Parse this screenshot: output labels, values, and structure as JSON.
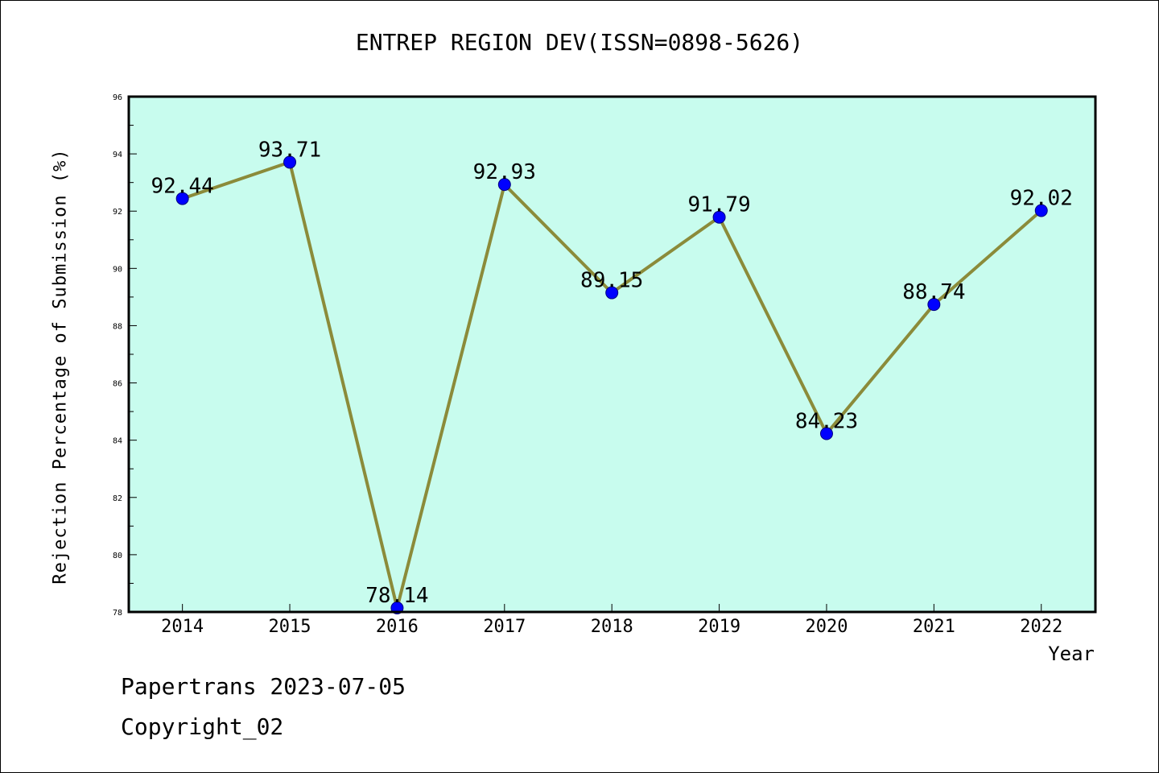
{
  "chart_data": {
    "type": "line",
    "title": "ENTREP REGION DEV(ISSN=0898-5626)",
    "xlabel": "Year",
    "ylabel": "Rejection Percentage of Submission (%)",
    "categories": [
      "2014",
      "2015",
      "2016",
      "2017",
      "2018",
      "2019",
      "2020",
      "2021",
      "2022"
    ],
    "values": [
      92.44,
      93.71,
      78.14,
      92.93,
      89.15,
      91.79,
      84.23,
      88.74,
      92.02
    ],
    "data_labels": [
      "92.44",
      "93.71",
      "78.14",
      "92.93",
      "89.15",
      "91.79",
      "84.23",
      "88.74",
      "92.02"
    ],
    "ylim": [
      78,
      96
    ],
    "yticks": [
      "78",
      "80",
      "82",
      "84",
      "86",
      "88",
      "90",
      "92",
      "94",
      "96"
    ],
    "grid": false,
    "line_color": "#8b8b3a",
    "marker_color": "#0000ff",
    "plot_background": "#c8fcee"
  },
  "footer": {
    "line1": "Papertrans 2023-07-05",
    "line2": "Copyright_02"
  }
}
